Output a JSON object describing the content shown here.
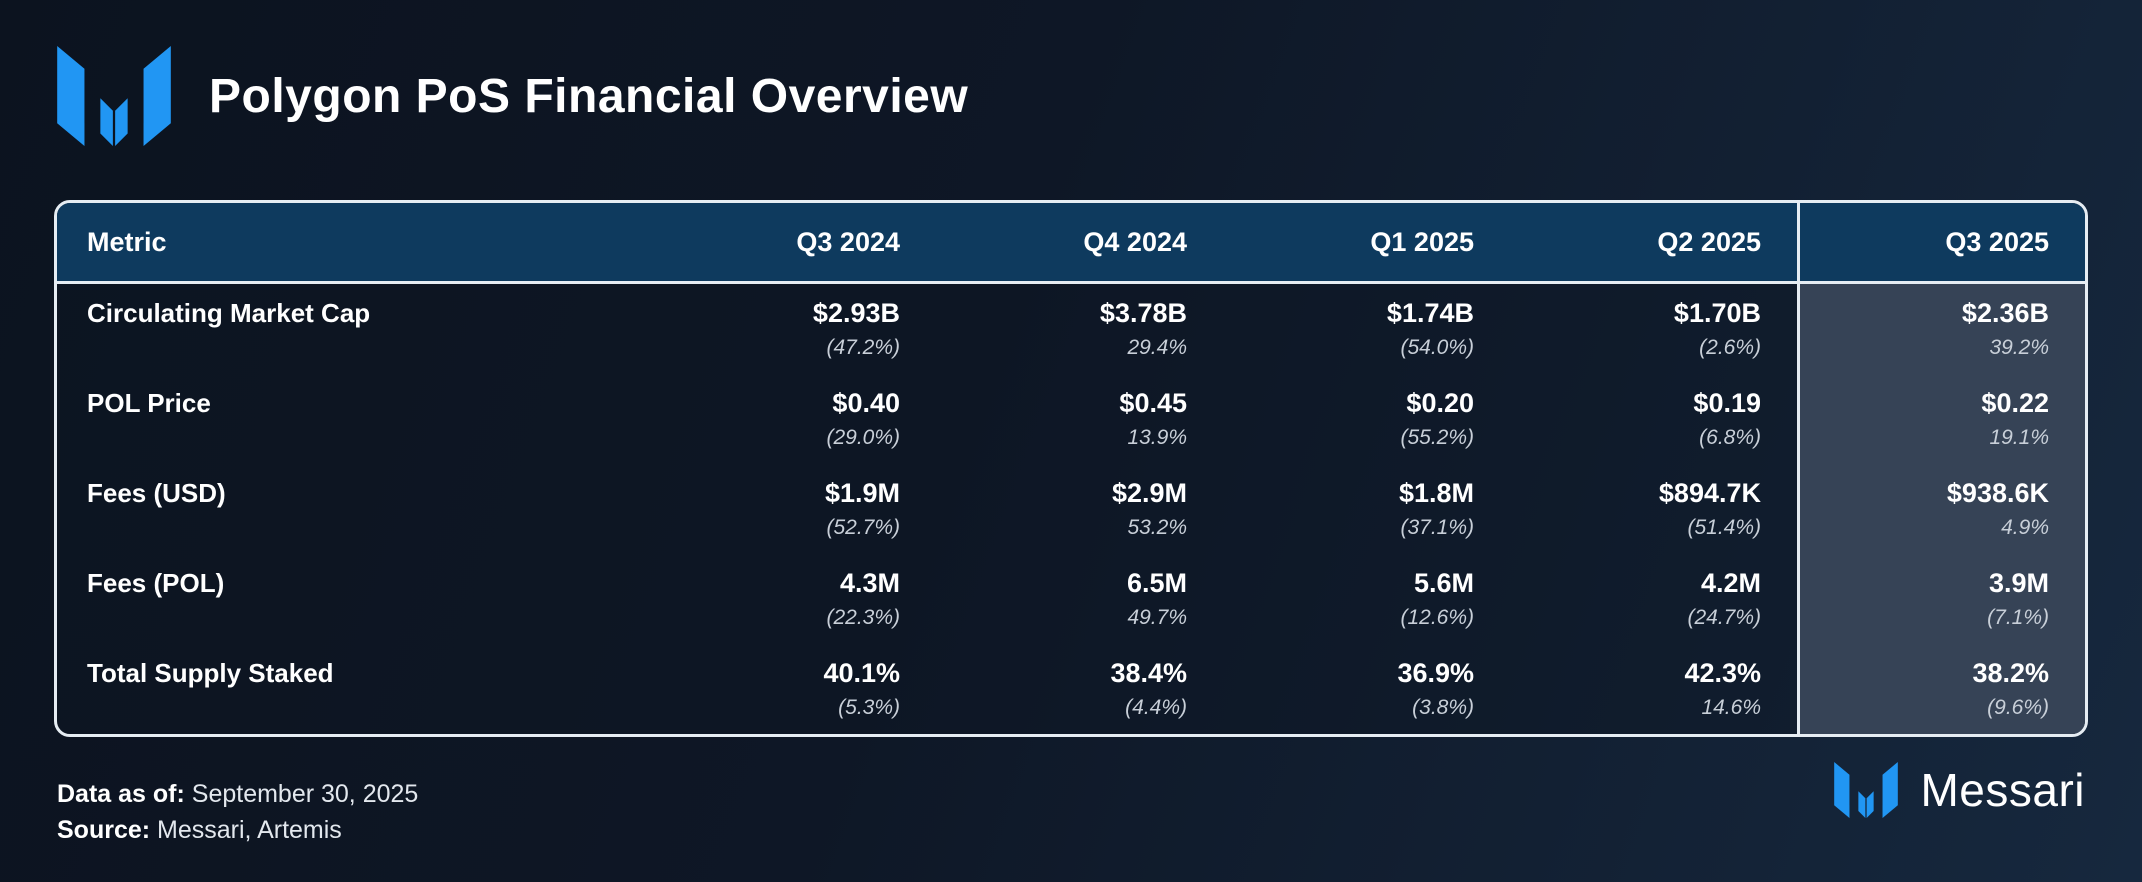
{
  "header": {
    "title": "Polygon PoS Financial Overview"
  },
  "brand": {
    "logo_icon": "messari-logo",
    "wordmark": "Messari",
    "logo_blue": "#2196F3"
  },
  "chart_data": {
    "type": "table",
    "title": "Polygon PoS Financial Overview",
    "columns": [
      "Metric",
      "Q3 2024",
      "Q4 2024",
      "Q1 2025",
      "Q2 2025",
      "Q3 2025"
    ],
    "rows": [
      {
        "metric": "Circulating Market Cap",
        "cells": [
          {
            "value": "$2.93B",
            "change": "(47.2%)"
          },
          {
            "value": "$3.78B",
            "change": "29.4%"
          },
          {
            "value": "$1.74B",
            "change": "(54.0%)"
          },
          {
            "value": "$1.70B",
            "change": "(2.6%)"
          },
          {
            "value": "$2.36B",
            "change": "39.2%"
          }
        ]
      },
      {
        "metric": "POL Price",
        "cells": [
          {
            "value": "$0.40",
            "change": "(29.0%)"
          },
          {
            "value": "$0.45",
            "change": "13.9%"
          },
          {
            "value": "$0.20",
            "change": "(55.2%)"
          },
          {
            "value": "$0.19",
            "change": "(6.8%)"
          },
          {
            "value": "$0.22",
            "change": "19.1%"
          }
        ]
      },
      {
        "metric": "Fees (USD)",
        "cells": [
          {
            "value": "$1.9M",
            "change": "(52.7%)"
          },
          {
            "value": "$2.9M",
            "change": "53.2%"
          },
          {
            "value": "$1.8M",
            "change": "(37.1%)"
          },
          {
            "value": "$894.7K",
            "change": "(51.4%)"
          },
          {
            "value": "$938.6K",
            "change": "4.9%"
          }
        ]
      },
      {
        "metric": "Fees (POL)",
        "cells": [
          {
            "value": "4.3M",
            "change": "(22.3%)"
          },
          {
            "value": "6.5M",
            "change": "49.7%"
          },
          {
            "value": "5.6M",
            "change": "(12.6%)"
          },
          {
            "value": "4.2M",
            "change": "(24.7%)"
          },
          {
            "value": "3.9M",
            "change": "(7.1%)"
          }
        ]
      },
      {
        "metric": "Total Supply Staked",
        "cells": [
          {
            "value": "40.1%",
            "change": "(5.3%)"
          },
          {
            "value": "38.4%",
            "change": "(4.4%)"
          },
          {
            "value": "36.9%",
            "change": "(3.8%)"
          },
          {
            "value": "42.3%",
            "change": "14.6%"
          },
          {
            "value": "38.2%",
            "change": "(9.6%)"
          }
        ]
      }
    ]
  },
  "footer": {
    "data_as_of_label": "Data as of:",
    "data_as_of_value": "September 30, 2025",
    "source_label": "Source:",
    "source_value": "Messari, Artemis"
  },
  "colors": {
    "background_top": "#0C131F",
    "background_bottom": "#16283E",
    "table_header_row": "#0E3A5E",
    "highlight_column": "#364356",
    "table_border": "#E6EDF3",
    "value_text": "#FFFFFF",
    "change_text": "#C8CFD8",
    "logo_blue": "#2196F3"
  }
}
